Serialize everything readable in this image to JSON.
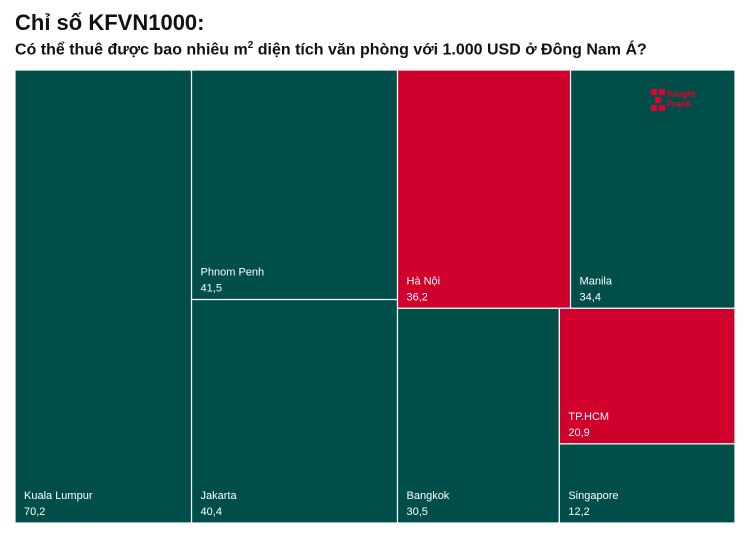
{
  "title": "Chỉ số KFVN1000:",
  "subtitle": {
    "before": "Có thể thuê được bao nhiêu m",
    "sup": "2",
    "after": " diện tích văn phòng với 1.000 USD ở Đông Nam Á?"
  },
  "logo": {
    "line1": "Knight",
    "line2": "Frank"
  },
  "colors": {
    "teal": "#004e4a",
    "red": "#d0002c",
    "border": "#ffffff"
  },
  "chart_data": {
    "type": "treemap",
    "title": "Chỉ số KFVN1000:",
    "subtitle": "Có thể thuê được bao nhiêu m2 diện tích văn phòng với 1.000 USD ở Đông Nam Á?",
    "items": [
      {
        "name": "Kuala Lumpur",
        "value": 70.2,
        "label": "70,2",
        "highlight": false
      },
      {
        "name": "Phnom Penh",
        "value": 41.5,
        "label": "41,5",
        "highlight": false
      },
      {
        "name": "Jakarta",
        "value": 40.4,
        "label": "40,4",
        "highlight": false
      },
      {
        "name": "Hà Nội",
        "value": 36.2,
        "label": "36,2",
        "highlight": true
      },
      {
        "name": "Manila",
        "value": 34.4,
        "label": "34,4",
        "highlight": false
      },
      {
        "name": "Bangkok",
        "value": 30.5,
        "label": "30,5",
        "highlight": false
      },
      {
        "name": "TP.HCM",
        "value": 20.9,
        "label": "20,9",
        "highlight": true
      },
      {
        "name": "Singapore",
        "value": 12.2,
        "label": "12,2",
        "highlight": false
      }
    ]
  }
}
